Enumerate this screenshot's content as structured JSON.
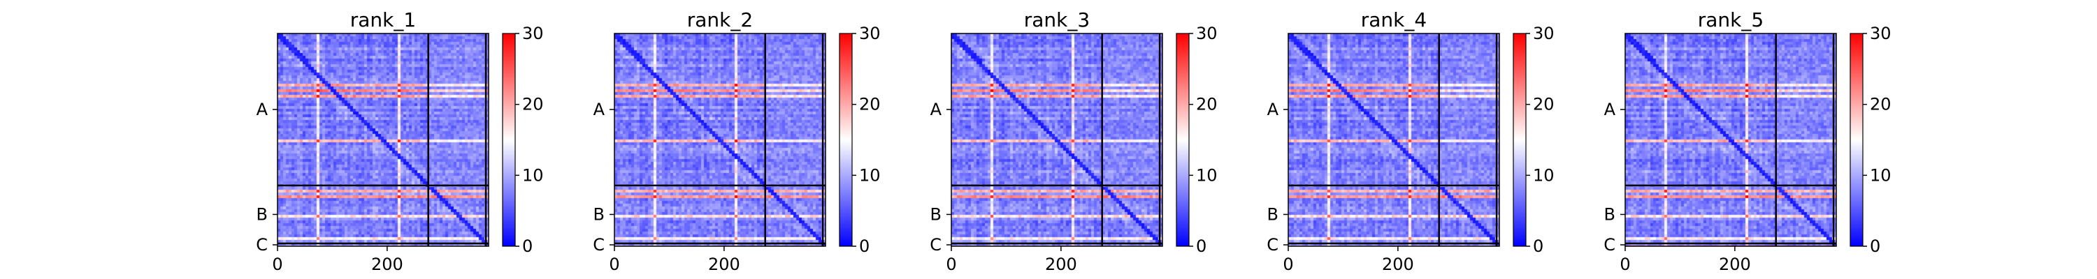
{
  "chart_data": [
    {
      "type": "heatmap",
      "title": "rank_1",
      "x_ticks": [
        0,
        200
      ],
      "y_ticks": [
        "A",
        "B",
        "C"
      ],
      "chain_boundaries": [
        0,
        275,
        380,
        385
      ],
      "xlim": [
        0,
        385
      ],
      "colorbar": {
        "min": 0,
        "max": 30,
        "ticks": [
          0,
          10,
          20,
          30
        ],
        "cmap": "bwr"
      },
      "grid": false
    },
    {
      "type": "heatmap",
      "title": "rank_2",
      "x_ticks": [
        0,
        200
      ],
      "y_ticks": [
        "A",
        "B",
        "C"
      ],
      "chain_boundaries": [
        0,
        275,
        380,
        385
      ],
      "xlim": [
        0,
        385
      ],
      "colorbar": {
        "min": 0,
        "max": 30,
        "ticks": [
          0,
          10,
          20,
          30
        ],
        "cmap": "bwr"
      },
      "grid": false
    },
    {
      "type": "heatmap",
      "title": "rank_3",
      "x_ticks": [
        0,
        200
      ],
      "y_ticks": [
        "A",
        "B",
        "C"
      ],
      "chain_boundaries": [
        0,
        275,
        380,
        385
      ],
      "xlim": [
        0,
        385
      ],
      "colorbar": {
        "min": 0,
        "max": 30,
        "ticks": [
          0,
          10,
          20,
          30
        ],
        "cmap": "bwr"
      },
      "grid": false
    },
    {
      "type": "heatmap",
      "title": "rank_4",
      "x_ticks": [
        0,
        200
      ],
      "y_ticks": [
        "A",
        "B",
        "C"
      ],
      "chain_boundaries": [
        0,
        275,
        380,
        385
      ],
      "xlim": [
        0,
        385
      ],
      "colorbar": {
        "min": 0,
        "max": 30,
        "ticks": [
          0,
          10,
          20,
          30
        ],
        "cmap": "bwr"
      },
      "grid": false
    },
    {
      "type": "heatmap",
      "title": "rank_5",
      "x_ticks": [
        0,
        200
      ],
      "y_ticks": [
        "A",
        "B",
        "C"
      ],
      "chain_boundaries": [
        0,
        275,
        380,
        385
      ],
      "xlim": [
        0,
        385
      ],
      "colorbar": {
        "min": 0,
        "max": 30,
        "ticks": [
          0,
          10,
          20,
          30
        ],
        "cmap": "bwr"
      },
      "grid": false
    }
  ],
  "colors": {
    "low": "#0000ff",
    "mid": "#ffffff",
    "high": "#ff0000",
    "boundary": "#000000"
  }
}
